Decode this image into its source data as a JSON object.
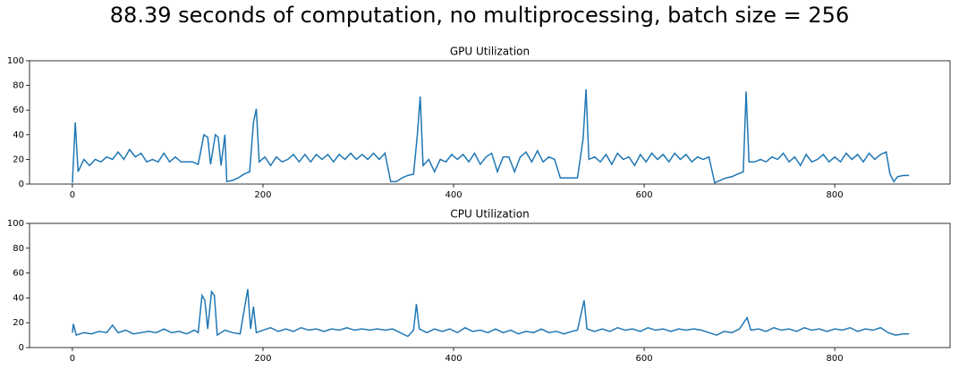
{
  "title": "88.39 seconds of computation, no multiprocessing, batch size = 256",
  "chart_data": [
    {
      "type": "line",
      "title": "GPU Utilization",
      "x": [
        0,
        3,
        6,
        12,
        18,
        24,
        30,
        36,
        42,
        48,
        54,
        60,
        66,
        72,
        78,
        84,
        90,
        96,
        102,
        108,
        114,
        120,
        126,
        132,
        138,
        142,
        145,
        150,
        153,
        156,
        160,
        162,
        168,
        174,
        180,
        186,
        190,
        193,
        196,
        202,
        208,
        214,
        220,
        226,
        232,
        238,
        244,
        250,
        256,
        262,
        268,
        274,
        280,
        286,
        292,
        298,
        304,
        310,
        316,
        322,
        328,
        334,
        340,
        346,
        352,
        358,
        362,
        365,
        368,
        374,
        380,
        386,
        392,
        398,
        404,
        410,
        416,
        422,
        428,
        434,
        440,
        446,
        452,
        458,
        464,
        470,
        476,
        482,
        488,
        494,
        500,
        506,
        512,
        518,
        524,
        530,
        536,
        539,
        542,
        548,
        554,
        560,
        566,
        572,
        578,
        584,
        590,
        596,
        602,
        608,
        614,
        620,
        626,
        632,
        638,
        644,
        650,
        656,
        662,
        668,
        674,
        680,
        686,
        692,
        698,
        704,
        707,
        710,
        716,
        722,
        728,
        734,
        740,
        746,
        752,
        758,
        764,
        770,
        776,
        782,
        788,
        794,
        800,
        806,
        812,
        818,
        824,
        830,
        836,
        842,
        848,
        854,
        858,
        862,
        866,
        872,
        878
      ],
      "series": [
        {
          "name": "GPU",
          "color": "#1f77b4",
          "values": [
            1,
            50,
            10,
            20,
            15,
            20,
            18,
            22,
            20,
            26,
            20,
            28,
            22,
            25,
            18,
            20,
            18,
            25,
            18,
            22,
            18,
            18,
            18,
            16,
            40,
            38,
            16,
            40,
            38,
            15,
            40,
            2,
            3,
            5,
            8,
            10,
            50,
            61,
            18,
            22,
            15,
            22,
            18,
            20,
            24,
            18,
            24,
            18,
            24,
            20,
            24,
            18,
            24,
            20,
            25,
            20,
            24,
            20,
            25,
            20,
            25,
            2,
            2,
            5,
            7,
            8,
            40,
            71,
            15,
            20,
            10,
            20,
            18,
            24,
            20,
            24,
            18,
            25,
            16,
            22,
            25,
            10,
            22,
            22,
            10,
            22,
            26,
            18,
            27,
            18,
            22,
            20,
            5,
            5,
            5,
            5,
            37,
            77,
            20,
            22,
            18,
            24,
            16,
            25,
            20,
            22,
            15,
            24,
            18,
            25,
            20,
            24,
            18,
            25,
            20,
            24,
            18,
            22,
            20,
            22,
            1,
            3,
            5,
            6,
            8,
            10,
            75,
            18,
            18,
            20,
            18,
            22,
            20,
            25,
            18,
            22,
            15,
            24,
            18,
            20,
            24,
            18,
            22,
            18,
            25,
            20,
            24,
            18,
            25,
            20,
            24,
            26,
            8,
            2,
            6,
            7,
            7
          ]
        }
      ],
      "xlim": [
        -45,
        921
      ],
      "ylim": [
        0,
        100
      ],
      "xticks": [
        0,
        200,
        400,
        600,
        800
      ],
      "yticks": [
        0,
        20,
        40,
        60,
        80,
        100
      ]
    },
    {
      "type": "line",
      "title": "CPU Utilization",
      "x": [
        0,
        1,
        4,
        12,
        20,
        28,
        36,
        42,
        48,
        56,
        64,
        72,
        80,
        88,
        96,
        104,
        112,
        120,
        128,
        132,
        136,
        139,
        142,
        146,
        149,
        152,
        160,
        168,
        176,
        184,
        187,
        190,
        193,
        200,
        208,
        216,
        224,
        232,
        240,
        248,
        256,
        264,
        272,
        280,
        288,
        296,
        304,
        312,
        320,
        328,
        336,
        344,
        352,
        358,
        361,
        364,
        372,
        380,
        388,
        396,
        404,
        412,
        420,
        428,
        436,
        444,
        452,
        460,
        468,
        476,
        484,
        492,
        500,
        508,
        516,
        524,
        530,
        537,
        540,
        548,
        556,
        564,
        572,
        580,
        588,
        596,
        604,
        612,
        620,
        628,
        636,
        644,
        652,
        660,
        668,
        676,
        684,
        692,
        700,
        708,
        712,
        720,
        728,
        736,
        744,
        752,
        760,
        768,
        776,
        784,
        792,
        800,
        808,
        816,
        824,
        832,
        840,
        848,
        856,
        864,
        872,
        878
      ],
      "series": [
        {
          "name": "CPU",
          "color": "#1f77b4",
          "values": [
            12,
            19,
            10,
            12,
            11,
            13,
            12,
            18,
            12,
            14,
            11,
            12,
            13,
            12,
            15,
            12,
            13,
            11,
            14,
            12,
            42,
            38,
            15,
            45,
            42,
            10,
            14,
            12,
            11,
            47,
            15,
            33,
            12,
            14,
            16,
            13,
            15,
            13,
            16,
            14,
            15,
            13,
            15,
            14,
            16,
            14,
            15,
            14,
            15,
            14,
            15,
            12,
            9,
            14,
            35,
            15,
            12,
            15,
            13,
            15,
            12,
            16,
            13,
            14,
            12,
            15,
            12,
            14,
            11,
            13,
            12,
            15,
            12,
            13,
            11,
            13,
            14,
            38,
            15,
            13,
            15,
            13,
            16,
            14,
            15,
            13,
            16,
            14,
            15,
            13,
            15,
            14,
            15,
            14,
            12,
            10,
            13,
            12,
            15,
            24,
            14,
            15,
            13,
            16,
            14,
            15,
            13,
            16,
            14,
            15,
            13,
            15,
            14,
            16,
            13,
            15,
            14,
            16,
            12,
            10,
            11,
            11
          ]
        }
      ],
      "xlim": [
        -45,
        921
      ],
      "ylim": [
        0,
        100
      ],
      "xticks": [
        0,
        200,
        400,
        600,
        800
      ],
      "yticks": [
        0,
        20,
        40,
        60,
        80,
        100
      ]
    }
  ]
}
